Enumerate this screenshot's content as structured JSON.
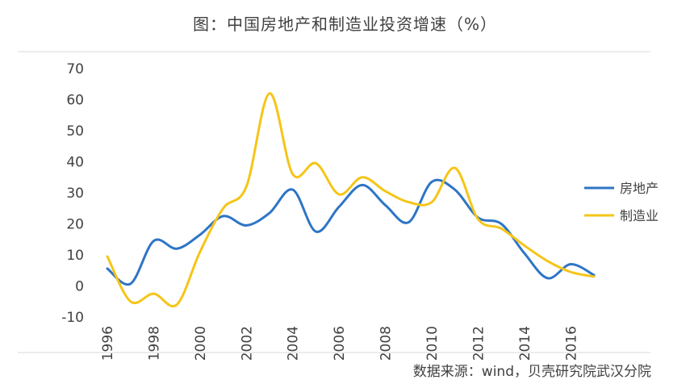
{
  "chart_data": {
    "type": "line",
    "title": "图：中国房地产和制造业投资增速（%）",
    "x": [
      1996,
      1997,
      1998,
      1999,
      2000,
      2001,
      2002,
      2003,
      2004,
      2005,
      2006,
      2007,
      2008,
      2009,
      2010,
      2011,
      2012,
      2013,
      2014,
      2015,
      2016,
      2017
    ],
    "x_tick_labels": [
      "1996",
      "1998",
      "2000",
      "2002",
      "2004",
      "2006",
      "2008",
      "2010",
      "2012",
      "2014",
      "2016"
    ],
    "y_tick_labels": [
      "70",
      "60",
      "50",
      "40",
      "30",
      "20",
      "10",
      "0",
      "-10"
    ],
    "ylim": [
      -10,
      70
    ],
    "grid": false,
    "legend_position": "right",
    "series": [
      {
        "name": "房地产",
        "color": "#2e75c6",
        "values": [
          5.6,
          0.7,
          14.5,
          12.0,
          16.5,
          22.5,
          19.5,
          23.5,
          31.0,
          17.5,
          25.5,
          32.5,
          26.0,
          20.5,
          33.5,
          31.0,
          22.0,
          20.0,
          10.5,
          2.5,
          7.0,
          3.5
        ]
      },
      {
        "name": "制造业",
        "color": "#f5c518",
        "values": [
          9.5,
          -5.0,
          -2.5,
          -6.0,
          11.0,
          25.0,
          32.0,
          62.0,
          36.0,
          39.5,
          29.5,
          35.0,
          30.5,
          27.0,
          27.0,
          38.0,
          21.5,
          18.5,
          13.0,
          8.0,
          4.5,
          3.0
        ]
      }
    ],
    "source": "数据来源：wind，贝壳研究院武汉分院"
  }
}
